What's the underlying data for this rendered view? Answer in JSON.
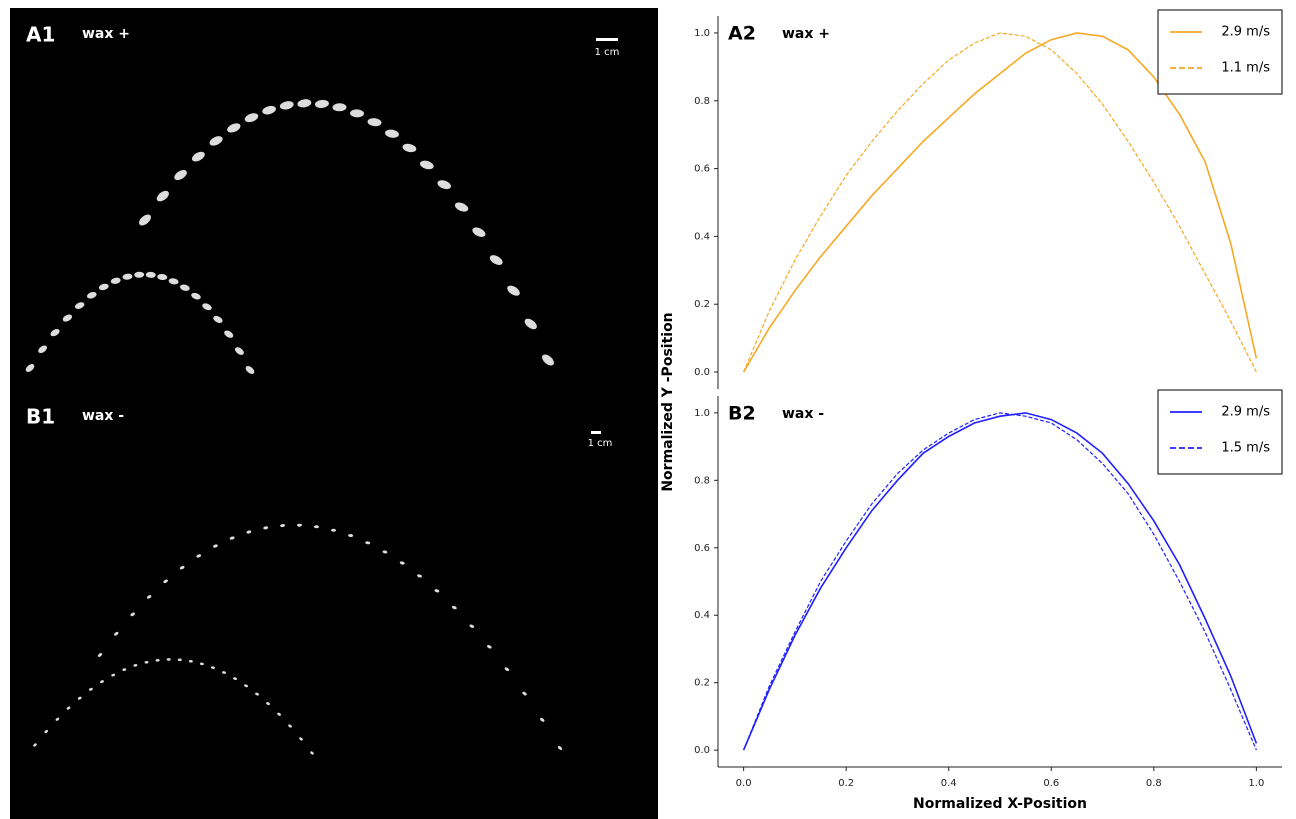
{
  "photo_panels": [
    {
      "label": "A1",
      "annotation": "wax +",
      "scale": "1 cm"
    },
    {
      "label": "B1",
      "annotation": "wax -",
      "scale": "1 cm"
    }
  ],
  "chart_data": [
    {
      "type": "line",
      "panel_label": "A2",
      "annotation": "wax +",
      "ylabel": "Normalized Y -Position",
      "x": [
        0,
        0.05,
        0.1,
        0.15,
        0.2,
        0.25,
        0.3,
        0.35,
        0.4,
        0.45,
        0.5,
        0.55,
        0.6,
        0.65,
        0.7,
        0.75,
        0.8,
        0.85,
        0.9,
        0.95,
        1
      ],
      "series": [
        {
          "name": "2.9 m/s",
          "color": "#f7a824",
          "style": "solid",
          "values": [
            0,
            0.13,
            0.24,
            0.34,
            0.43,
            0.52,
            0.6,
            0.68,
            0.75,
            0.82,
            0.88,
            0.94,
            0.98,
            1.0,
            0.99,
            0.95,
            0.87,
            0.76,
            0.62,
            0.38,
            0.04
          ]
        },
        {
          "name": "1.1 m/s",
          "color": "#f7a824",
          "style": "dashed",
          "values": [
            0,
            0.18,
            0.33,
            0.46,
            0.58,
            0.68,
            0.77,
            0.85,
            0.92,
            0.97,
            1.0,
            0.99,
            0.95,
            0.88,
            0.79,
            0.68,
            0.56,
            0.43,
            0.29,
            0.15,
            0
          ]
        }
      ],
      "xlim": [
        -0.05,
        1.05
      ],
      "ylim": [
        -0.05,
        1.05
      ],
      "yticks": [
        {
          "value": 0,
          "label": "0.0"
        },
        0.2,
        0.4,
        0.6,
        0.8,
        {
          "value": 1,
          "label": "1.0"
        }
      ],
      "legend": "upper right"
    },
    {
      "type": "line",
      "panel_label": "B2",
      "annotation": "wax -",
      "xlabel": "Normalized X-Position",
      "x": [
        0,
        0.05,
        0.1,
        0.15,
        0.2,
        0.25,
        0.3,
        0.35,
        0.4,
        0.45,
        0.5,
        0.55,
        0.6,
        0.65,
        0.7,
        0.75,
        0.8,
        0.85,
        0.9,
        0.95,
        1
      ],
      "series": [
        {
          "name": "2.9 m/s",
          "color": "#2020ff",
          "style": "solid",
          "values": [
            0,
            0.18,
            0.34,
            0.48,
            0.6,
            0.71,
            0.8,
            0.88,
            0.93,
            0.97,
            0.99,
            1.0,
            0.98,
            0.94,
            0.88,
            0.79,
            0.68,
            0.55,
            0.39,
            0.22,
            0.02
          ]
        },
        {
          "name": "1.5 m/s",
          "color": "#2020ff",
          "style": "dashed",
          "values": [
            0,
            0.19,
            0.35,
            0.5,
            0.62,
            0.73,
            0.82,
            0.89,
            0.94,
            0.98,
            1.0,
            0.99,
            0.97,
            0.92,
            0.85,
            0.76,
            0.64,
            0.5,
            0.35,
            0.18,
            0
          ]
        }
      ],
      "xlim": [
        -0.05,
        1.05
      ],
      "ylim": [
        -0.05,
        1.05
      ],
      "xticks": [
        {
          "value": 0,
          "label": "0.0"
        },
        0.2,
        0.4,
        0.6,
        0.8,
        {
          "value": 1,
          "label": "1.0"
        }
      ],
      "yticks": [
        {
          "value": 0,
          "label": "0.0"
        },
        0.2,
        0.4,
        0.6,
        0.8,
        {
          "value": 1,
          "label": "1.0"
        }
      ],
      "legend": "upper right"
    }
  ]
}
